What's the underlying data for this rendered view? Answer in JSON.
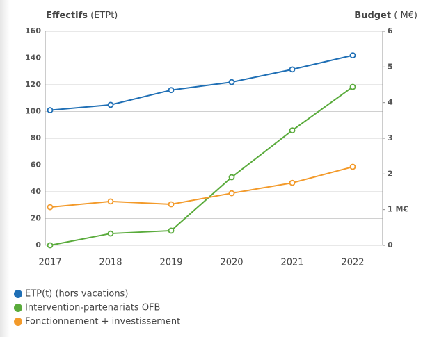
{
  "chart_data": {
    "type": "line",
    "ylabel": {
      "bold": "Effectifs",
      "rest": "(ETPt)"
    },
    "y2label": {
      "bold": "Budget",
      "rest": "( M€)"
    },
    "categories": [
      "2017",
      "2018",
      "2019",
      "2020",
      "2021",
      "2022"
    ],
    "series": [
      {
        "name": "ETP(t) (hors vacations)",
        "color": "#1f6fb5",
        "values": [
          101,
          105,
          116,
          122,
          131.5,
          142
        ]
      },
      {
        "name": "Intervention-partenariats OFB",
        "color": "#5aab3c",
        "axis": "y2",
        "values": [
          0,
          0.33,
          0.41,
          1.91,
          3.22,
          4.44
        ]
      },
      {
        "name": "Fonctionnement + investissement",
        "color": "#f39a2a",
        "axis": "y2",
        "values": [
          1.07,
          1.23,
          1.15,
          1.46,
          1.75,
          2.2
        ]
      }
    ],
    "ylim": [
      0,
      160
    ],
    "yticks": [
      0,
      20,
      40,
      60,
      80,
      100,
      120,
      140,
      160
    ],
    "y2lim": [
      0,
      6
    ],
    "y2ticks": [
      0,
      {
        "value": 1,
        "label": "1 M€"
      },
      2,
      3,
      4,
      5,
      6
    ],
    "grid": true
  }
}
